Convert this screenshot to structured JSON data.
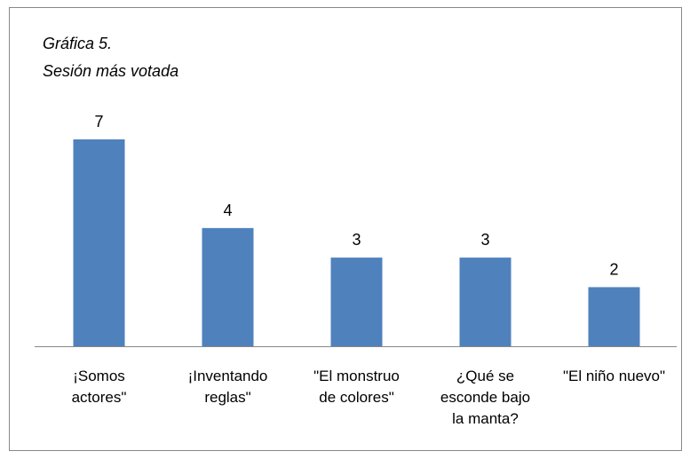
{
  "chart_data": {
    "type": "bar",
    "title": "Gráfica 5.",
    "subtitle": "Sesión más votada",
    "categories": [
      "¡Somos actores\"",
      "¡Inventando reglas\"",
      "\"El monstruo de colores\"",
      "¿Qué se esconde bajo la manta?",
      "\"El niño nuevo\""
    ],
    "values": [
      7,
      4,
      3,
      3,
      2
    ],
    "color": "#4f81bd",
    "ylim": [
      0,
      7
    ]
  }
}
